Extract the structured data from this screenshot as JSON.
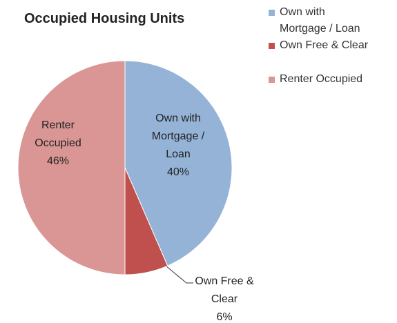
{
  "chart_data": {
    "type": "pie",
    "title": "Occupied Housing Units",
    "categories": [
      "Own with Mortgage / Loan",
      "Own Free & Clear",
      "Renter Occupied"
    ],
    "values": [
      40,
      6,
      46
    ],
    "value_labels": [
      "40%",
      "6%",
      "46%"
    ],
    "colors": [
      "#95b3d7",
      "#c0504d",
      "#d99694"
    ],
    "legend": "right"
  }
}
